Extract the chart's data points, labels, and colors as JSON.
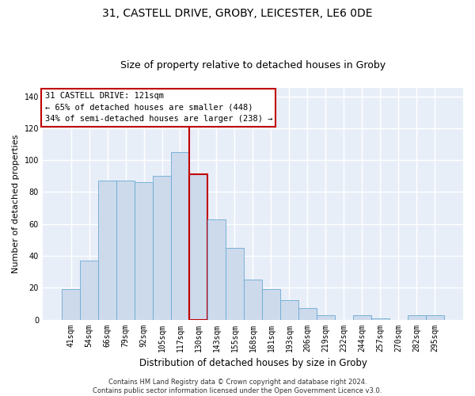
{
  "title1": "31, CASTELL DRIVE, GROBY, LEICESTER, LE6 0DE",
  "title2": "Size of property relative to detached houses in Groby",
  "xlabel": "Distribution of detached houses by size in Groby",
  "ylabel": "Number of detached properties",
  "categories": [
    "41sqm",
    "54sqm",
    "66sqm",
    "79sqm",
    "92sqm",
    "105sqm",
    "117sqm",
    "130sqm",
    "143sqm",
    "155sqm",
    "168sqm",
    "181sqm",
    "193sqm",
    "206sqm",
    "219sqm",
    "232sqm",
    "244sqm",
    "257sqm",
    "270sqm",
    "282sqm",
    "295sqm"
  ],
  "values": [
    19,
    37,
    87,
    87,
    86,
    90,
    105,
    91,
    63,
    45,
    25,
    19,
    12,
    7,
    3,
    0,
    3,
    1,
    0,
    3,
    3
  ],
  "bar_color": "#ccdaec",
  "bar_edge_color": "#6aaad4",
  "highlight_bar_index": 7,
  "highlight_edge_color": "#c00000",
  "vline_color": "#c00000",
  "annotation_lines": [
    "31 CASTELL DRIVE: 121sqm",
    "← 65% of detached houses are smaller (448)",
    "34% of semi-detached houses are larger (238) →"
  ],
  "annotation_box_color": "#ffffff",
  "annotation_box_edge": "#c00000",
  "ylim": [
    0,
    145
  ],
  "yticks": [
    0,
    20,
    40,
    60,
    80,
    100,
    120,
    140
  ],
  "background_color": "#e8eef8",
  "grid_color": "#ffffff",
  "footnote": "Contains HM Land Registry data © Crown copyright and database right 2024.\nContains public sector information licensed under the Open Government Licence v3.0.",
  "title1_fontsize": 10,
  "title2_fontsize": 9,
  "xlabel_fontsize": 8.5,
  "ylabel_fontsize": 8,
  "tick_fontsize": 7,
  "annot_fontsize": 7.5,
  "footnote_fontsize": 6
}
